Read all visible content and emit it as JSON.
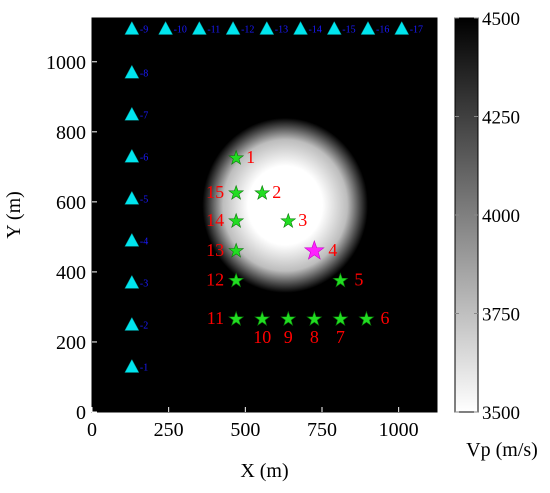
{
  "chart_data": {
    "type": "scatter",
    "title": "",
    "xlabel": "X (m)",
    "ylabel": "Y (m)",
    "xlim": [
      0,
      1125
    ],
    "ylim": [
      0,
      1125
    ],
    "xticks": [
      0,
      250,
      500,
      750,
      1000
    ],
    "yticks": [
      0,
      200,
      400,
      600,
      800,
      1000
    ],
    "background": {
      "type": "heatmap",
      "description_colormap": "gray",
      "anomaly_center": [
        630,
        590
      ],
      "anomaly_radius": [
        200,
        185
      ],
      "value_inside": 3500,
      "value_outside": 4500
    },
    "colorbar": {
      "label": "Vp (m/s)",
      "range": [
        3500,
        4500
      ],
      "ticks": [
        3500,
        3750,
        4000,
        4250,
        4500
      ]
    },
    "receivers": {
      "color": "#00e5ee",
      "label_color": "#1a1aff",
      "points": [
        {
          "label": "1",
          "x": 130,
          "y": 130
        },
        {
          "label": "2",
          "x": 130,
          "y": 250
        },
        {
          "label": "3",
          "x": 130,
          "y": 370
        },
        {
          "label": "4",
          "x": 130,
          "y": 490
        },
        {
          "label": "5",
          "x": 130,
          "y": 610
        },
        {
          "label": "6",
          "x": 130,
          "y": 730
        },
        {
          "label": "7",
          "x": 130,
          "y": 850
        },
        {
          "label": "8",
          "x": 130,
          "y": 970
        },
        {
          "label": "9",
          "x": 130,
          "y": 1095
        },
        {
          "label": "10",
          "x": 240,
          "y": 1095
        },
        {
          "label": "11",
          "x": 350,
          "y": 1095
        },
        {
          "label": "12",
          "x": 460,
          "y": 1095
        },
        {
          "label": "13",
          "x": 570,
          "y": 1095
        },
        {
          "label": "14",
          "x": 680,
          "y": 1095
        },
        {
          "label": "15",
          "x": 790,
          "y": 1095
        },
        {
          "label": "16",
          "x": 900,
          "y": 1095
        },
        {
          "label": "17",
          "x": 1010,
          "y": 1095
        }
      ]
    },
    "sources": {
      "color": "#22dd22",
      "label_color": "#ff0000",
      "highlight_color": "#ff22ff",
      "points": [
        {
          "label": "1",
          "x": 470,
          "y": 725,
          "highlight": false
        },
        {
          "label": "2",
          "x": 555,
          "y": 625,
          "highlight": false
        },
        {
          "label": "3",
          "x": 640,
          "y": 545,
          "highlight": false
        },
        {
          "label": "4",
          "x": 725,
          "y": 460,
          "highlight": true
        },
        {
          "label": "5",
          "x": 810,
          "y": 375,
          "highlight": false
        },
        {
          "label": "6",
          "x": 895,
          "y": 265,
          "highlight": false
        },
        {
          "label": "7",
          "x": 810,
          "y": 265,
          "highlight": false
        },
        {
          "label": "8",
          "x": 725,
          "y": 265,
          "highlight": false
        },
        {
          "label": "9",
          "x": 640,
          "y": 265,
          "highlight": false
        },
        {
          "label": "10",
          "x": 555,
          "y": 265,
          "highlight": false
        },
        {
          "label": "11",
          "x": 470,
          "y": 265,
          "highlight": false
        },
        {
          "label": "12",
          "x": 470,
          "y": 375,
          "highlight": false
        },
        {
          "label": "13",
          "x": 470,
          "y": 460,
          "highlight": false
        },
        {
          "label": "14",
          "x": 470,
          "y": 545,
          "highlight": false
        },
        {
          "label": "15",
          "x": 470,
          "y": 625,
          "highlight": false
        }
      ]
    }
  }
}
